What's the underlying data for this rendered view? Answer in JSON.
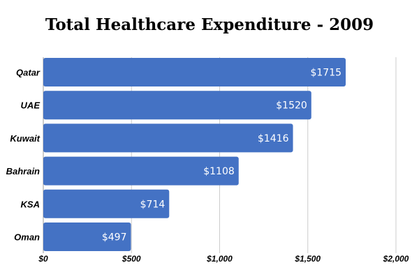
{
  "chart_data": {
    "type": "bar",
    "orientation": "horizontal",
    "title": "Total Healthcare Expenditure - 2009",
    "xlabel": "",
    "ylabel": "",
    "categories": [
      "Qatar",
      "UAE",
      "Kuwait",
      "Bahrain",
      "KSA",
      "Oman"
    ],
    "values": [
      1715,
      1520,
      1416,
      1108,
      714,
      497
    ],
    "data_labels": [
      "$1715",
      "$1520",
      "$1416",
      "$1108",
      "$714",
      "$497"
    ],
    "xlim": [
      0,
      2000
    ],
    "x_ticks": [
      0,
      500,
      1000,
      1500,
      2000
    ],
    "x_tick_labels": [
      "$0",
      "$500",
      "$1,000",
      "$1,500",
      "$2,000"
    ],
    "grid": true,
    "legend": "none",
    "colors": {
      "bar": "#4472C4",
      "bar_label": "#ffffff",
      "grid": "#cccccc"
    }
  }
}
